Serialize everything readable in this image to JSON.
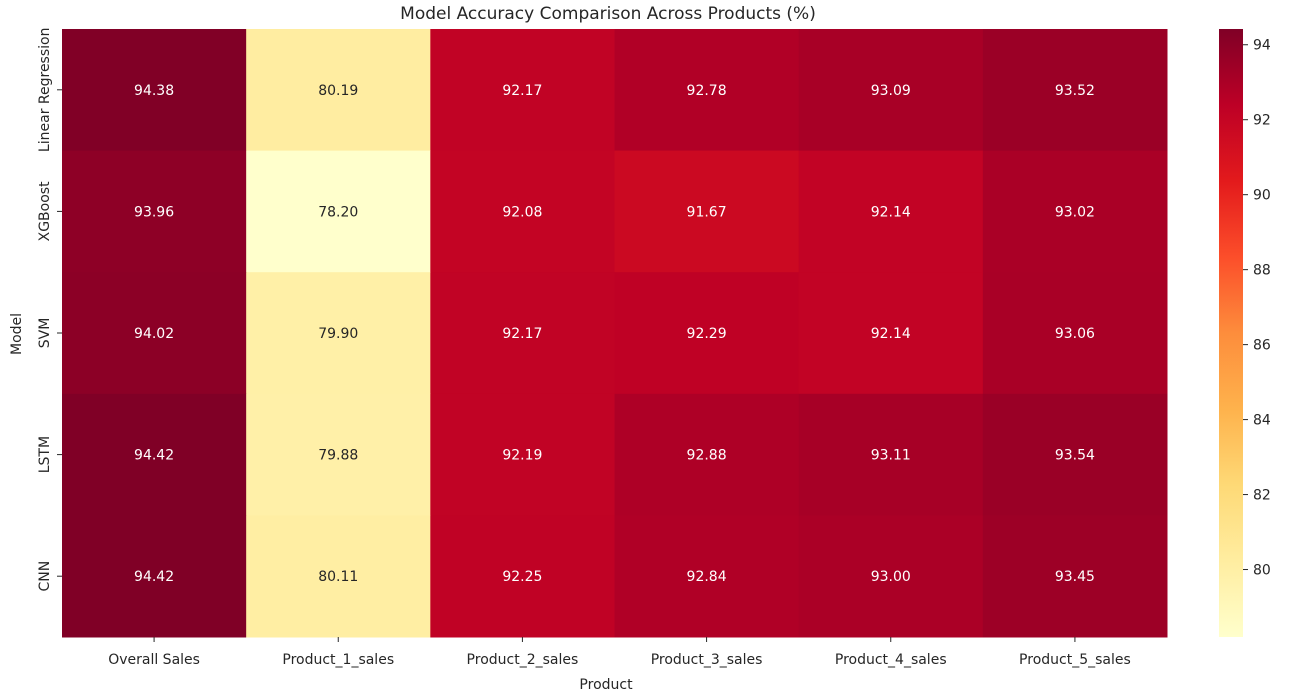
{
  "chart_data": {
    "type": "heatmap",
    "title": "Model Accuracy Comparison Across Products (%)",
    "xlabel": "Product",
    "ylabel": "Model",
    "x_categories": [
      "Overall Sales",
      "Product_1_sales",
      "Product_2_sales",
      "Product_3_sales",
      "Product_4_sales",
      "Product_5_sales"
    ],
    "y_categories": [
      "Linear Regression",
      "XGBoost",
      "SVM",
      "LSTM",
      "CNN"
    ],
    "values": [
      [
        94.38,
        80.19,
        92.17,
        92.78,
        93.09,
        93.52
      ],
      [
        93.96,
        78.2,
        92.08,
        91.67,
        92.14,
        93.02
      ],
      [
        94.02,
        79.9,
        92.17,
        92.29,
        92.14,
        93.06
      ],
      [
        94.42,
        79.88,
        92.19,
        92.88,
        93.11,
        93.54
      ],
      [
        94.42,
        80.11,
        92.25,
        92.84,
        93.0,
        93.45
      ]
    ],
    "value_format": "0.00",
    "colormap": "YlOrRd",
    "colorbar": {
      "range": [
        78.2,
        94.42
      ],
      "ticks": [
        "80",
        "82",
        "84",
        "86",
        "88",
        "90",
        "92",
        "94"
      ]
    },
    "grid": false
  }
}
